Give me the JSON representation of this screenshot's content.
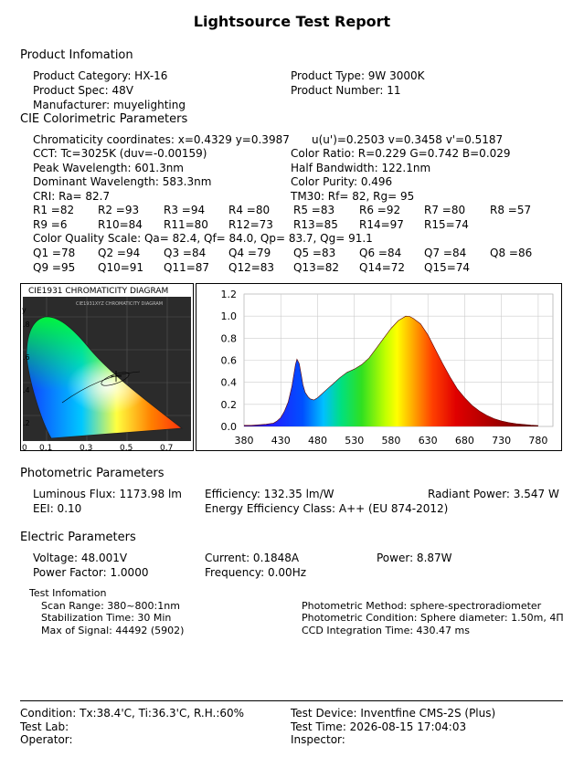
{
  "title": "Lightsource Test Report",
  "product": {
    "heading": "Product Infomation",
    "category": "Product Category: HX-16",
    "type": "Product Type: 9W  3000K",
    "spec": "Product Spec: 48V",
    "number": "Product Number: 11",
    "manufacturer": "Manufacturer: muyelighting"
  },
  "cie": {
    "heading": "CIE Colorimetric Parameters",
    "chroma": "Chromaticity coordinates: x=0.4329 y=0.3987",
    "uv": "u(u')=0.2503 v=0.3458 v'=0.5187",
    "cct": "CCT: Tc=3025K (duv=-0.00159)",
    "ratio": "Color Ratio: R=0.229  G=0.742  B=0.029",
    "peak": "Peak Wavelength: 601.3nm",
    "half": "Half Bandwidth: 122.1nm",
    "dominant": "Dominant Wavelength: 583.3nm",
    "purity": "Color Purity: 0.496",
    "cri": "CRI: Ra= 82.7",
    "tm30": "TM30: Rf=   82, Rg=   95",
    "r_values": [
      "R1 =82",
      "R2 =93",
      "R3 =94",
      "R4 =80",
      "R5 =83",
      "R6 =92",
      "R7 =80",
      "R8 =57",
      "R9 =6",
      "R10=84",
      "R11=80",
      "R12=73",
      "R13=85",
      "R14=97",
      "R15=74"
    ],
    "cqs": "Color Quality Scale: Qa= 82.4, Qf= 84.0, Qp= 83.7, Qg= 91.1",
    "q_values": [
      "Q1 =78",
      "Q2 =94",
      "Q3 =84",
      "Q4 =79",
      "Q5 =83",
      "Q6 =84",
      "Q7 =84",
      "Q8 =86",
      "Q9 =95",
      "Q10=91",
      "Q11=87",
      "Q12=83",
      "Q13=82",
      "Q14=72",
      "Q15=74"
    ]
  },
  "cie_diagram": {
    "title": "CIE1931 CHROMATICITY DIAGRAM",
    "inner_title": "CIE1931XYZ CHROMATICITY DIAGRAM",
    "y_label": "y",
    "y_ticks": [
      ".8",
      ".6",
      ".4",
      ".2"
    ],
    "x_ticks": [
      "0",
      "0.1",
      "0.3",
      "0.5",
      "0.7"
    ]
  },
  "chart_data": {
    "type": "line",
    "title": "",
    "xlabel": "",
    "ylabel": "",
    "xlim": [
      380,
      800
    ],
    "ylim": [
      0,
      1.2
    ],
    "x_ticks": [
      380,
      430,
      480,
      530,
      580,
      630,
      680,
      730,
      780
    ],
    "y_ticks": [
      "0.0",
      "0.2",
      "0.4",
      "0.6",
      "0.8",
      "1.0",
      "1.2"
    ],
    "grid": true,
    "series": [
      {
        "x": [
          380,
          390,
          400,
          410,
          420,
          425,
          430,
          435,
          440,
          445,
          448,
          450,
          452,
          455,
          458,
          460,
          463,
          467,
          470,
          475,
          480,
          485,
          490,
          495,
          500,
          510,
          520,
          530,
          540,
          550,
          560,
          570,
          580,
          590,
          600,
          605,
          610,
          620,
          630,
          640,
          650,
          660,
          670,
          680,
          690,
          700,
          710,
          720,
          730,
          740,
          750,
          760,
          770,
          780
        ],
        "values": [
          0.01,
          0.01,
          0.015,
          0.02,
          0.03,
          0.05,
          0.08,
          0.14,
          0.22,
          0.36,
          0.48,
          0.56,
          0.61,
          0.57,
          0.46,
          0.38,
          0.31,
          0.27,
          0.25,
          0.24,
          0.26,
          0.29,
          0.32,
          0.35,
          0.38,
          0.44,
          0.49,
          0.52,
          0.56,
          0.62,
          0.71,
          0.8,
          0.89,
          0.96,
          1.0,
          0.997,
          0.98,
          0.93,
          0.83,
          0.7,
          0.57,
          0.45,
          0.34,
          0.26,
          0.19,
          0.14,
          0.1,
          0.07,
          0.05,
          0.035,
          0.025,
          0.018,
          0.012,
          0.008
        ]
      }
    ]
  },
  "photometric": {
    "heading": "Photometric Parameters",
    "flux": "Luminous Flux: 1173.98 lm",
    "efficiency": "Efficiency: 132.35 lm/W",
    "radiant": "Radiant Power: 3.547 W",
    "eei": "EEI:  0.10",
    "class": "Energy Efficiency Class: A++ (EU 874-2012)"
  },
  "electric": {
    "heading": "Electric Parameters",
    "voltage": "Voltage: 48.001V",
    "current": "Current: 0.1848A",
    "power": "Power: 8.87W",
    "pf": "Power Factor: 1.0000",
    "freq": "Frequency: 0.00Hz"
  },
  "test": {
    "heading": "Test Infomation",
    "scan": "Scan Range: 380~800:1nm",
    "stabilization": "Stabilization Time: 30 Min",
    "max_signal": "Max of Signal: 44492 (5902)",
    "method": "Photometric Method: sphere-spectroradiometer",
    "condition": "Photometric Condition: Sphere diameter: 1.50m, 4Π",
    "ccd": "CCD Integration Time: 430.47 ms"
  },
  "footer": {
    "condition": "Condition: Tx:38.4'C, Ti:36.3'C, R.H.:60%",
    "device": "Test Device: Inventfine CMS-2S (Plus)",
    "lab": "Test Lab:",
    "time": "Test Time: 2026-08-15 17:04:03",
    "operator": "Operator:",
    "inspector": "Inspector:"
  }
}
